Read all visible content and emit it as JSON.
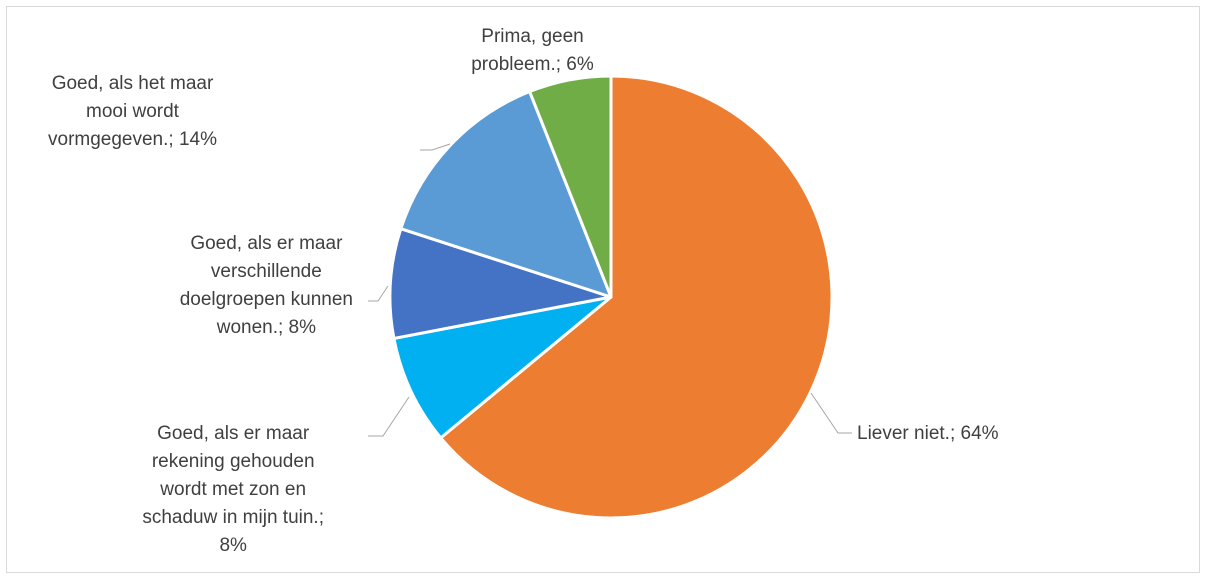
{
  "chart_data": {
    "type": "pie",
    "slices": [
      {
        "label": "Liever niet.; 64%",
        "value": 64,
        "color": "#ED7D31"
      },
      {
        "label": "Goed, als er maar\nrekening gehouden\nwordt met zon en\nschaduw in mijn tuin.;\n8%",
        "value": 8,
        "color": "#00B0F0"
      },
      {
        "label": "Goed, als er maar\nverschillende\ndoelgroepen kunnen\nwonen.; 8%",
        "value": 8,
        "color": "#4472C4"
      },
      {
        "label": "Goed, als het maar\nmooi wordt\nvormgegeven.; 14%",
        "value": 14,
        "color": "#5B9BD5"
      },
      {
        "label": "Prima, geen\nprobleem.; 6%",
        "value": 6,
        "color": "#70AD47"
      }
    ]
  }
}
